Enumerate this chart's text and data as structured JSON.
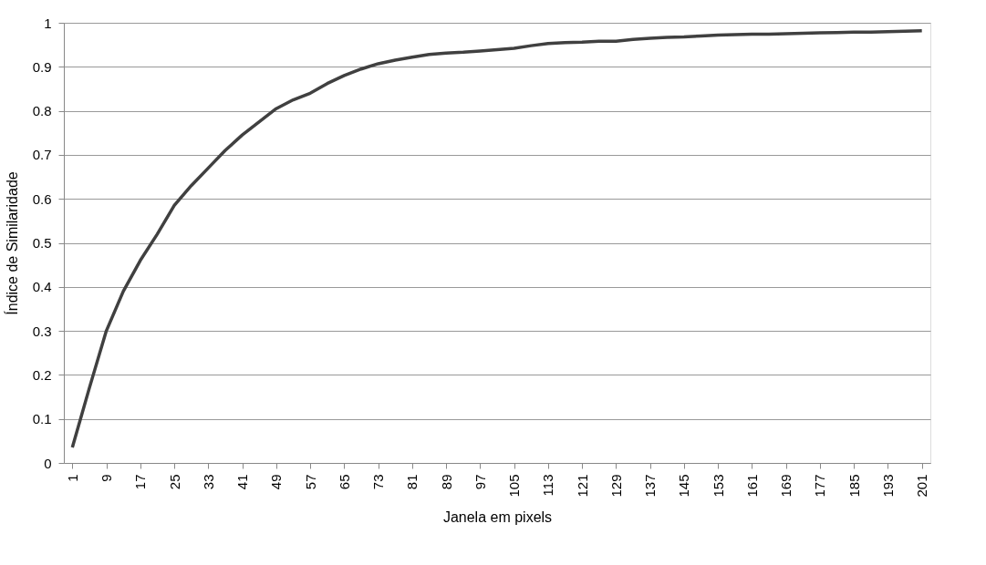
{
  "chart_data": {
    "type": "line",
    "xlabel": "Janela em pixels",
    "ylabel": "Índice de Similaridade",
    "x": [
      1,
      5,
      9,
      13,
      17,
      21,
      25,
      29,
      33,
      37,
      41,
      45,
      49,
      53,
      57,
      61,
      65,
      69,
      73,
      77,
      81,
      85,
      89,
      93,
      97,
      101,
      105,
      109,
      113,
      117,
      121,
      125,
      129,
      133,
      137,
      141,
      145,
      149,
      153,
      157,
      161,
      165,
      169,
      173,
      177,
      181,
      185,
      189,
      193,
      197,
      201
    ],
    "series": [
      {
        "color": "#404040",
        "values": [
          0.035,
          0.17,
          0.3,
          0.39,
          0.46,
          0.52,
          0.585,
          0.63,
          0.67,
          0.71,
          0.745,
          0.775,
          0.805,
          0.825,
          0.84,
          0.862,
          0.88,
          0.895,
          0.907,
          0.915,
          0.922,
          0.928,
          0.931,
          0.933,
          0.936,
          0.939,
          0.942,
          0.948,
          0.953,
          0.955,
          0.956,
          0.958,
          0.958,
          0.962,
          0.965,
          0.967,
          0.968,
          0.97,
          0.972,
          0.973,
          0.974,
          0.974,
          0.975,
          0.976,
          0.977,
          0.978,
          0.979,
          0.979,
          0.98,
          0.981,
          0.982
        ]
      }
    ],
    "xlim": [
      -1,
      203
    ],
    "xticks": [
      1,
      9,
      17,
      25,
      33,
      41,
      49,
      57,
      65,
      73,
      81,
      89,
      97,
      105,
      113,
      121,
      129,
      137,
      145,
      153,
      161,
      169,
      177,
      185,
      193,
      201
    ],
    "ylim": [
      0,
      1
    ],
    "yticks": [
      0,
      0.1,
      0.2,
      0.3,
      0.4,
      0.5,
      0.6,
      0.7,
      0.8,
      0.9,
      1
    ],
    "grid": "y",
    "legend": false,
    "marker": "none",
    "line_style": "solid"
  }
}
